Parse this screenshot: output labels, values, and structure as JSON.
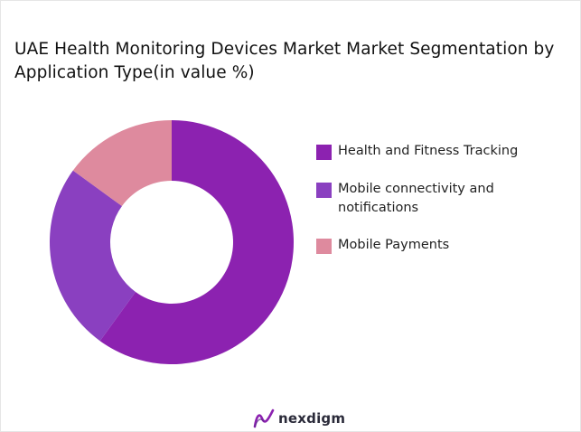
{
  "title": "UAE Health Monitoring Devices Market  Market Segmentation by Application Type(in value %)",
  "chart_data": {
    "type": "pie",
    "subtype": "donut",
    "title": "UAE Health Monitoring Devices Market  Market Segmentation by Application Type(in value %)",
    "categories": [
      "Health and Fitness Tracking",
      "Mobile connectivity and notifications",
      "Mobile Payments"
    ],
    "values": [
      60,
      25,
      15
    ],
    "colors": [
      "#8c22b0",
      "#8a40c0",
      "#de8a9e"
    ],
    "legend_position": "right"
  },
  "legend": [
    {
      "label": "Health and Fitness Tracking",
      "color": "#8c22b0"
    },
    {
      "label": "Mobile connectivity and notifications",
      "color": "#8a40c0"
    },
    {
      "label": "Mobile Payments",
      "color": "#de8a9e"
    }
  ],
  "brand": {
    "name": "nexdigm",
    "logo_icon": "nexdigm-logo-icon"
  }
}
